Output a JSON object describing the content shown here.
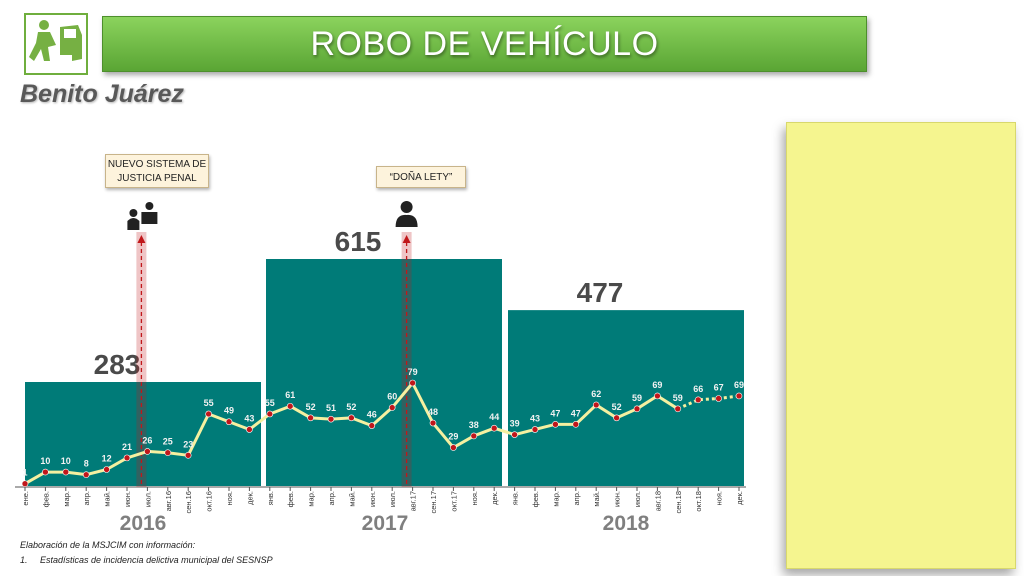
{
  "header": {
    "title": "ROBO DE VEHÍCULO",
    "subtitle": "Benito Juárez",
    "logo_icon": "car-theft-icon"
  },
  "callouts": {
    "nsjp": "NUEVO SISTEMA DE JUSTICIA PENAL",
    "lety": "“DOÑA LETY”"
  },
  "footer": {
    "source": "Elaboración de la MSJCIM con información:",
    "item": "1.     Estadísticas de incidencia delictiva municipal del SESNSP"
  },
  "colors": {
    "year_bar": "#007b78",
    "line": "#f5f0a0",
    "marker": "#c0171a",
    "event_line": "#c0171a",
    "title_bar": "#6abf45",
    "note_panel": "#f5f58f"
  },
  "chart_data": {
    "type": "line",
    "years": [
      {
        "year": "2016",
        "total": 283
      },
      {
        "year": "2017",
        "total": 615
      },
      {
        "year": "2018",
        "total": 477
      }
    ],
    "categories": [
      "ене.",
      "фев.",
      "мар.",
      "апр.",
      "май.",
      "июн.",
      "июл.",
      "авг.16",
      "сен.16",
      "окт.16",
      "ноя.",
      "дек.",
      "янв.",
      "фев.",
      "мар.",
      "апр.",
      "май.",
      "июн.",
      "июл.",
      "авг.17",
      "сен.17",
      "окт.17",
      "ноя.",
      "дек.",
      "янв.",
      "фев.",
      "мар.",
      "апр.",
      "май.",
      "июн.",
      "июл.",
      "авг.18",
      "сен.18",
      "окт.18",
      "ноя.",
      "дек."
    ],
    "values": [
      1,
      10,
      10,
      8,
      12,
      21,
      26,
      25,
      23,
      55,
      49,
      43,
      55,
      61,
      52,
      51,
      52,
      46,
      60,
      79,
      48,
      29,
      38,
      44,
      39,
      43,
      47,
      47,
      62,
      52,
      59,
      69,
      59,
      66,
      67,
      69
    ],
    "projected_from_index": 32,
    "events": [
      {
        "label": "NUEVO SISTEMA DE JUSTICIA PENAL",
        "icon": "courtroom-icon",
        "category_index": 6
      },
      {
        "label": "“DOÑA LETY”",
        "icon": "woman-official-icon",
        "category_index": 19
      }
    ],
    "title": "",
    "xlabel": "",
    "ylabel": ""
  }
}
